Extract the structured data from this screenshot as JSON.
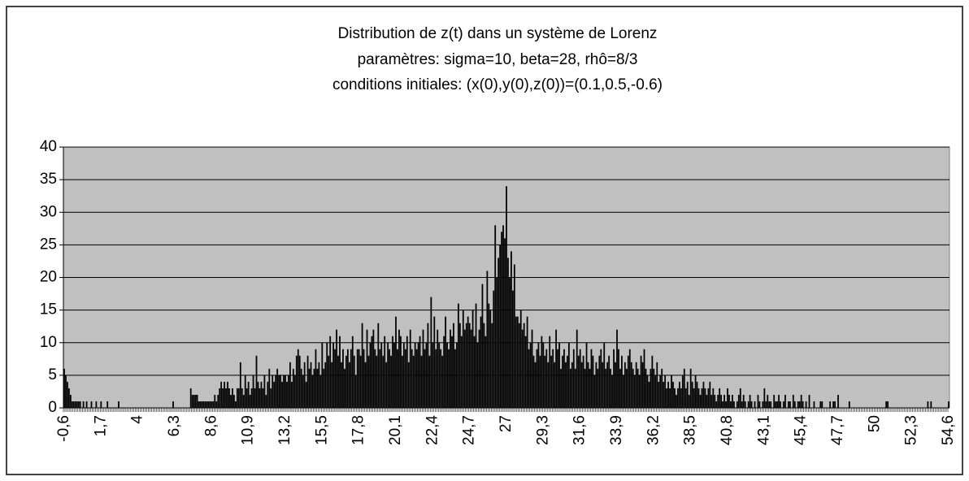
{
  "chart_data": {
    "type": "bar",
    "title": [
      "Distribution de z(t) dans un système de Lorenz",
      "paramètres: sigma=10, beta=28, rhô=8/3",
      "conditions initiales: (x(0),y(0),z(0))=(0.1,0.5,-0.6)"
    ],
    "categories": [
      "-0,6",
      null,
      null,
      null,
      null,
      null,
      null,
      null,
      null,
      null,
      null,
      null,
      null,
      null,
      null,
      null,
      null,
      null,
      null,
      null,
      null,
      null,
      null,
      "1,7",
      null,
      null,
      null,
      null,
      null,
      null,
      null,
      null,
      null,
      null,
      null,
      null,
      null,
      null,
      null,
      null,
      null,
      null,
      null,
      null,
      null,
      null,
      "4",
      null,
      null,
      null,
      null,
      null,
      null,
      null,
      null,
      null,
      null,
      null,
      null,
      null,
      null,
      null,
      null,
      null,
      null,
      null,
      null,
      null,
      null,
      "6,3",
      null,
      null,
      null,
      null,
      null,
      null,
      null,
      null,
      null,
      null,
      null,
      null,
      null,
      null,
      null,
      null,
      null,
      null,
      null,
      null,
      null,
      null,
      "8,6",
      null,
      null,
      null,
      null,
      null,
      null,
      null,
      null,
      null,
      null,
      null,
      null,
      null,
      null,
      null,
      null,
      null,
      null,
      null,
      null,
      null,
      null,
      "10,9",
      null,
      null,
      null,
      null,
      null,
      null,
      null,
      null,
      null,
      null,
      null,
      null,
      null,
      null,
      null,
      null,
      null,
      null,
      null,
      null,
      null,
      null,
      "13,2",
      null,
      null,
      null,
      null,
      null,
      null,
      null,
      null,
      null,
      null,
      null,
      null,
      null,
      null,
      null,
      null,
      null,
      null,
      null,
      null,
      null,
      null,
      "15,5",
      null,
      null,
      null,
      null,
      null,
      null,
      null,
      null,
      null,
      null,
      null,
      null,
      null,
      null,
      null,
      null,
      null,
      null,
      null,
      null,
      null,
      null,
      "17,8",
      null,
      null,
      null,
      null,
      null,
      null,
      null,
      null,
      null,
      null,
      null,
      null,
      null,
      null,
      null,
      null,
      null,
      null,
      null,
      null,
      null,
      null,
      "20,1",
      null,
      null,
      null,
      null,
      null,
      null,
      null,
      null,
      null,
      null,
      null,
      null,
      null,
      null,
      null,
      null,
      null,
      null,
      null,
      null,
      null,
      null,
      "22,4",
      null,
      null,
      null,
      null,
      null,
      null,
      null,
      null,
      null,
      null,
      null,
      null,
      null,
      null,
      null,
      null,
      null,
      null,
      null,
      null,
      null,
      null,
      "24,7",
      null,
      null,
      null,
      null,
      null,
      null,
      null,
      null,
      null,
      null,
      null,
      null,
      null,
      null,
      null,
      null,
      null,
      null,
      null,
      null,
      null,
      null,
      "27",
      null,
      null,
      null,
      null,
      null,
      null,
      null,
      null,
      null,
      null,
      null,
      null,
      null,
      null,
      null,
      null,
      null,
      null,
      null,
      null,
      null,
      null,
      "29,3",
      null,
      null,
      null,
      null,
      null,
      null,
      null,
      null,
      null,
      null,
      null,
      null,
      null,
      null,
      null,
      null,
      null,
      null,
      null,
      null,
      null,
      null,
      "31,6",
      null,
      null,
      null,
      null,
      null,
      null,
      null,
      null,
      null,
      null,
      null,
      null,
      null,
      null,
      null,
      null,
      null,
      null,
      null,
      null,
      null,
      null,
      "33,9",
      null,
      null,
      null,
      null,
      null,
      null,
      null,
      null,
      null,
      null,
      null,
      null,
      null,
      null,
      null,
      null,
      null,
      null,
      null,
      null,
      null,
      null,
      "36,2",
      null,
      null,
      null,
      null,
      null,
      null,
      null,
      null,
      null,
      null,
      null,
      null,
      null,
      null,
      null,
      null,
      null,
      null,
      null,
      null,
      null,
      null,
      "38,5",
      null,
      null,
      null,
      null,
      null,
      null,
      null,
      null,
      null,
      null,
      null,
      null,
      null,
      null,
      null,
      null,
      null,
      null,
      null,
      null,
      null,
      null,
      "40,8",
      null,
      null,
      null,
      null,
      null,
      null,
      null,
      null,
      null,
      null,
      null,
      null,
      null,
      null,
      null,
      null,
      null,
      null,
      null,
      null,
      null,
      null,
      "43,1",
      null,
      null,
      null,
      null,
      null,
      null,
      null,
      null,
      null,
      null,
      null,
      null,
      null,
      null,
      null,
      null,
      null,
      null,
      null,
      null,
      null,
      null,
      "45,4",
      null,
      null,
      null,
      null,
      null,
      null,
      null,
      null,
      null,
      null,
      null,
      null,
      null,
      null,
      null,
      null,
      null,
      null,
      null,
      null,
      null,
      null,
      "47,7",
      null,
      null,
      null,
      null,
      null,
      null,
      null,
      null,
      null,
      null,
      null,
      null,
      null,
      null,
      null,
      null,
      null,
      null,
      null,
      null,
      null,
      null,
      "50",
      null,
      null,
      null,
      null,
      null,
      null,
      null,
      null,
      null,
      null,
      null,
      null,
      null,
      null,
      null,
      null,
      null,
      null,
      null,
      null,
      null,
      null,
      "52,3",
      null,
      null,
      null,
      null,
      null,
      null,
      null,
      null,
      null,
      null,
      null,
      null,
      null,
      null,
      null,
      null,
      null,
      null,
      null,
      null,
      null,
      null,
      "54,6"
    ],
    "values": [
      6,
      5,
      4,
      3,
      2,
      1,
      1,
      1,
      1,
      1,
      1,
      0,
      1,
      0,
      1,
      0,
      0,
      1,
      0,
      0,
      1,
      0,
      0,
      1,
      0,
      0,
      0,
      1,
      0,
      0,
      0,
      0,
      0,
      0,
      1,
      0,
      0,
      0,
      0,
      0,
      0,
      0,
      0,
      0,
      0,
      0,
      0,
      0,
      0,
      0,
      0,
      0,
      0,
      0,
      0,
      0,
      0,
      0,
      0,
      0,
      0,
      0,
      0,
      0,
      0,
      0,
      0,
      0,
      1,
      0,
      0,
      0,
      0,
      0,
      0,
      0,
      0,
      0,
      0,
      3,
      2,
      2,
      2,
      2,
      1,
      1,
      1,
      1,
      1,
      1,
      1,
      1,
      1,
      1,
      2,
      1,
      2,
      3,
      4,
      3,
      4,
      3,
      4,
      3,
      2,
      3,
      2,
      1,
      3,
      3,
      7,
      3,
      2,
      5,
      3,
      4,
      2,
      3,
      5,
      3,
      8,
      4,
      3,
      4,
      3,
      5,
      2,
      4,
      6,
      3,
      5,
      4,
      5,
      6,
      5,
      5,
      4,
      5,
      5,
      4,
      5,
      7,
      4,
      6,
      5,
      8,
      9,
      8,
      6,
      5,
      7,
      4,
      8,
      6,
      7,
      5,
      6,
      9,
      6,
      7,
      5,
      10,
      6,
      7,
      10,
      8,
      11,
      7,
      10,
      9,
      12,
      8,
      11,
      7,
      9,
      6,
      8,
      9,
      7,
      9,
      11,
      8,
      5,
      9,
      9,
      8,
      13,
      9,
      7,
      12,
      8,
      10,
      11,
      12,
      9,
      8,
      13,
      9,
      10,
      8,
      11,
      7,
      10,
      9,
      8,
      11,
      10,
      14,
      9,
      12,
      11,
      8,
      10,
      9,
      11,
      7,
      12,
      9,
      8,
      10,
      9,
      10,
      11,
      8,
      12,
      9,
      10,
      13,
      8,
      17,
      10,
      14,
      9,
      12,
      10,
      9,
      8,
      11,
      14,
      10,
      9,
      12,
      11,
      13,
      9,
      10,
      16,
      13,
      11,
      15,
      12,
      13,
      14,
      13,
      12,
      15,
      11,
      16,
      10,
      12,
      14,
      19,
      13,
      11,
      21,
      16,
      15,
      13,
      18,
      28,
      20,
      23,
      25,
      27,
      28,
      26,
      34,
      23,
      20,
      24,
      18,
      22,
      14,
      14,
      13,
      15,
      12,
      13,
      11,
      14,
      9,
      10,
      12,
      8,
      7,
      9,
      10,
      8,
      11,
      10,
      8,
      9,
      7,
      11,
      8,
      9,
      7,
      12,
      9,
      10,
      6,
      8,
      9,
      7,
      8,
      10,
      6,
      7,
      9,
      6,
      12,
      8,
      9,
      7,
      8,
      6,
      10,
      7,
      6,
      9,
      8,
      5,
      7,
      6,
      8,
      9,
      7,
      10,
      6,
      7,
      8,
      6,
      5,
      9,
      7,
      12,
      9,
      6,
      8,
      5,
      7,
      6,
      8,
      9,
      7,
      6,
      5,
      7,
      6,
      5,
      8,
      7,
      9,
      6,
      5,
      4,
      6,
      8,
      6,
      5,
      7,
      4,
      5,
      6,
      4,
      5,
      3,
      4,
      3,
      5,
      4,
      3,
      2,
      3,
      4,
      3,
      5,
      6,
      3,
      4,
      2,
      6,
      4,
      3,
      5,
      4,
      3,
      2,
      3,
      4,
      3,
      2,
      3,
      4,
      2,
      3,
      2,
      1,
      2,
      3,
      2,
      1,
      2,
      1,
      3,
      2,
      1,
      2,
      1,
      0,
      1,
      2,
      3,
      1,
      2,
      1,
      0,
      1,
      2,
      1,
      0,
      1,
      0,
      2,
      1,
      0,
      1,
      3,
      1,
      2,
      1,
      1,
      0,
      2,
      1,
      1,
      2,
      1,
      0,
      1,
      2,
      0,
      1,
      1,
      0,
      2,
      1,
      0,
      1,
      1,
      2,
      1,
      0,
      1,
      0,
      2,
      0,
      0,
      1,
      0,
      0,
      0,
      1,
      1,
      0,
      0,
      0,
      0,
      1,
      0,
      1,
      1,
      0,
      2,
      0,
      0,
      0,
      0,
      0,
      0,
      1,
      0,
      0,
      0,
      0,
      0,
      0,
      0,
      0,
      0,
      0,
      0,
      0,
      0,
      0,
      0,
      0,
      0,
      0,
      0,
      0,
      0,
      0,
      1,
      1,
      0,
      0,
      0,
      0,
      0,
      0,
      0,
      0,
      0,
      0,
      0,
      0,
      0,
      0,
      0,
      0,
      0,
      0,
      0,
      0,
      0,
      0,
      0,
      0,
      1,
      0,
      1,
      0,
      0,
      0,
      0,
      0,
      0,
      0,
      0,
      0,
      0,
      1
    ],
    "color": "#000000",
    "background": "#c0c0c0",
    "ylim": [
      0,
      40
    ],
    "yticks": [
      0,
      5,
      10,
      15,
      20,
      25,
      30,
      35,
      40
    ],
    "grid": true
  }
}
